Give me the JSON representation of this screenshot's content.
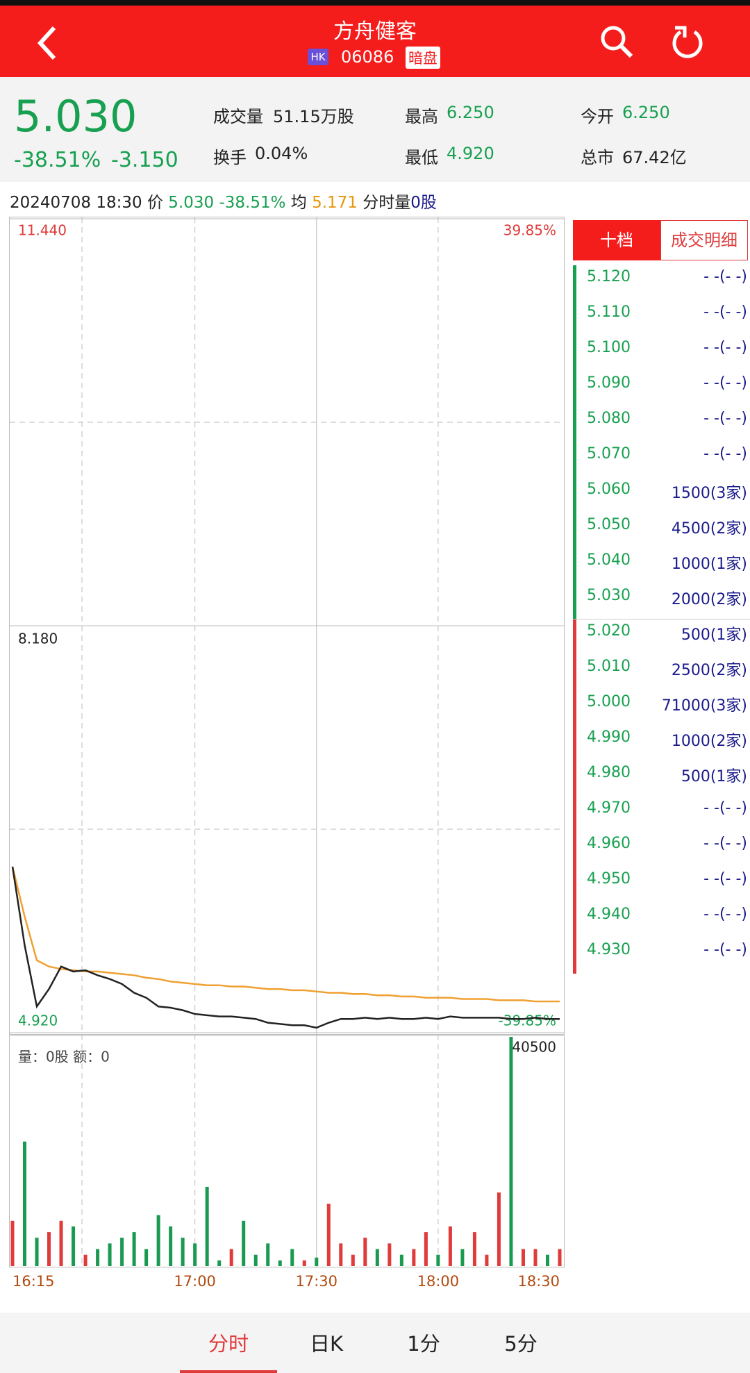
{
  "header": {
    "title": "方舟健客",
    "market": "HK",
    "code": "06086",
    "tag": "暗盘"
  },
  "quote": {
    "price": "5.030",
    "change_pct": "-38.51%",
    "change": "-3.150",
    "stats": [
      {
        "label": "成交量",
        "value": "51.15万股"
      },
      {
        "label": "最高",
        "value": "6.250"
      },
      {
        "label": "今开",
        "value": "6.250"
      },
      {
        "label": "换手",
        "value": "0.04%"
      },
      {
        "label": "最低",
        "value": "4.920"
      },
      {
        "label": "总市",
        "value": "67.42亿"
      }
    ]
  },
  "info_bar": {
    "time": "20240708 18:30",
    "price_label": "价",
    "price": "5.030",
    "change_pct": "-38.51%",
    "avg_label": "均",
    "avg": "5.171",
    "volume_label": "分时量",
    "volume": "0股"
  },
  "chart_data": {
    "type": "line",
    "x": [
      "16:15",
      "16:18",
      "16:21",
      "16:24",
      "16:27",
      "16:30",
      "16:33",
      "16:36",
      "16:39",
      "16:42",
      "16:45",
      "16:48",
      "16:51",
      "16:54",
      "16:57",
      "17:00",
      "17:03",
      "17:06",
      "17:09",
      "17:12",
      "17:15",
      "17:18",
      "17:21",
      "17:24",
      "17:27",
      "17:30",
      "17:33",
      "17:36",
      "17:39",
      "17:42",
      "17:45",
      "17:48",
      "17:51",
      "17:54",
      "17:57",
      "18:00",
      "18:03",
      "18:06",
      "18:09",
      "18:12",
      "18:15",
      "18:18",
      "18:21",
      "18:24",
      "18:27",
      "18:30"
    ],
    "series": [
      {
        "color": "#222222",
        "values": [
          6.25,
          5.62,
          5.13,
          5.27,
          5.45,
          5.41,
          5.42,
          5.38,
          5.35,
          5.31,
          5.24,
          5.2,
          5.13,
          5.12,
          5.1,
          5.07,
          5.06,
          5.05,
          5.05,
          5.04,
          5.03,
          5.0,
          4.99,
          4.98,
          4.98,
          4.96,
          5.0,
          5.03,
          5.03,
          5.04,
          5.03,
          5.04,
          5.03,
          5.03,
          5.04,
          5.03,
          5.05,
          5.04,
          5.04,
          5.04,
          5.04,
          5.03,
          5.03,
          5.04,
          5.03,
          5.03
        ]
      },
      {
        "color": "#f0a030",
        "values": [
          6.25,
          5.85,
          5.5,
          5.45,
          5.43,
          5.42,
          5.41,
          5.41,
          5.4,
          5.39,
          5.38,
          5.36,
          5.35,
          5.33,
          5.32,
          5.31,
          5.3,
          5.3,
          5.29,
          5.29,
          5.28,
          5.27,
          5.27,
          5.26,
          5.26,
          5.25,
          5.24,
          5.24,
          5.23,
          5.23,
          5.22,
          5.22,
          5.21,
          5.21,
          5.2,
          5.2,
          5.2,
          5.19,
          5.19,
          5.19,
          5.18,
          5.18,
          5.18,
          5.17,
          5.17,
          5.17
        ]
      }
    ],
    "ylim": [
      4.92,
      11.44
    ],
    "yticks": [
      {
        "value": 11.44,
        "label": "11.440"
      },
      {
        "value": 8.18,
        "label": "8.180"
      },
      {
        "value": 4.92,
        "label": "4.920"
      }
    ],
    "y2lim": [
      -39.85,
      39.85
    ],
    "y2ticks": [
      {
        "value": 39.85,
        "label": "39.85%"
      },
      {
        "value": -39.85,
        "label": "-39.85%"
      }
    ],
    "xticks": [
      "16:15",
      "17:00",
      "17:30",
      "18:00",
      "18:30"
    ],
    "volume": {
      "label": "量：0股 额：0",
      "ylim": [
        0,
        40500
      ],
      "yticks": [
        40500
      ],
      "up_color": "#e03a3a",
      "down_color": "#1a9a50",
      "values": [
        8000,
        22000,
        5000,
        6000,
        8000,
        7000,
        2000,
        3000,
        4000,
        5000,
        6000,
        3000,
        9000,
        7000,
        5000,
        4000,
        14000,
        1000,
        3000,
        8000,
        2000,
        4000,
        1000,
        3000,
        1000,
        1500,
        11000,
        4000,
        2000,
        5000,
        3000,
        4000,
        2000,
        3000,
        6000,
        2000,
        7000,
        3000,
        6000,
        2000,
        13000,
        40500,
        3000,
        3000,
        2000,
        3000
      ]
    }
  },
  "order_book": {
    "tabs": [
      "十档",
      "成交明细"
    ],
    "asks": [
      {
        "price": "5.120",
        "volume": "- -(- -)"
      },
      {
        "price": "5.110",
        "volume": "- -(- -)"
      },
      {
        "price": "5.100",
        "volume": "- -(- -)"
      },
      {
        "price": "5.090",
        "volume": "- -(- -)"
      },
      {
        "price": "5.080",
        "volume": "- -(- -)"
      },
      {
        "price": "5.070",
        "volume": "- -(- -)"
      },
      {
        "price": "5.060",
        "volume": "1500(3家)"
      },
      {
        "price": "5.050",
        "volume": "4500(2家)"
      },
      {
        "price": "5.040",
        "volume": "1000(1家)"
      },
      {
        "price": "5.030",
        "volume": "2000(2家)"
      }
    ],
    "bids": [
      {
        "price": "5.020",
        "volume": "500(1家)"
      },
      {
        "price": "5.010",
        "volume": "2500(2家)"
      },
      {
        "price": "5.000",
        "volume": "71000(3家)"
      },
      {
        "price": "4.990",
        "volume": "1000(2家)"
      },
      {
        "price": "4.980",
        "volume": "500(1家)"
      },
      {
        "price": "4.970",
        "volume": "- -(- -)"
      },
      {
        "price": "4.960",
        "volume": "- -(- -)"
      },
      {
        "price": "4.950",
        "volume": "- -(- -)"
      },
      {
        "price": "4.940",
        "volume": "- -(- -)"
      },
      {
        "price": "4.930",
        "volume": "- -(- -)"
      }
    ]
  },
  "bottom_tabs": [
    "分时",
    "日K",
    "1分",
    "5分"
  ]
}
